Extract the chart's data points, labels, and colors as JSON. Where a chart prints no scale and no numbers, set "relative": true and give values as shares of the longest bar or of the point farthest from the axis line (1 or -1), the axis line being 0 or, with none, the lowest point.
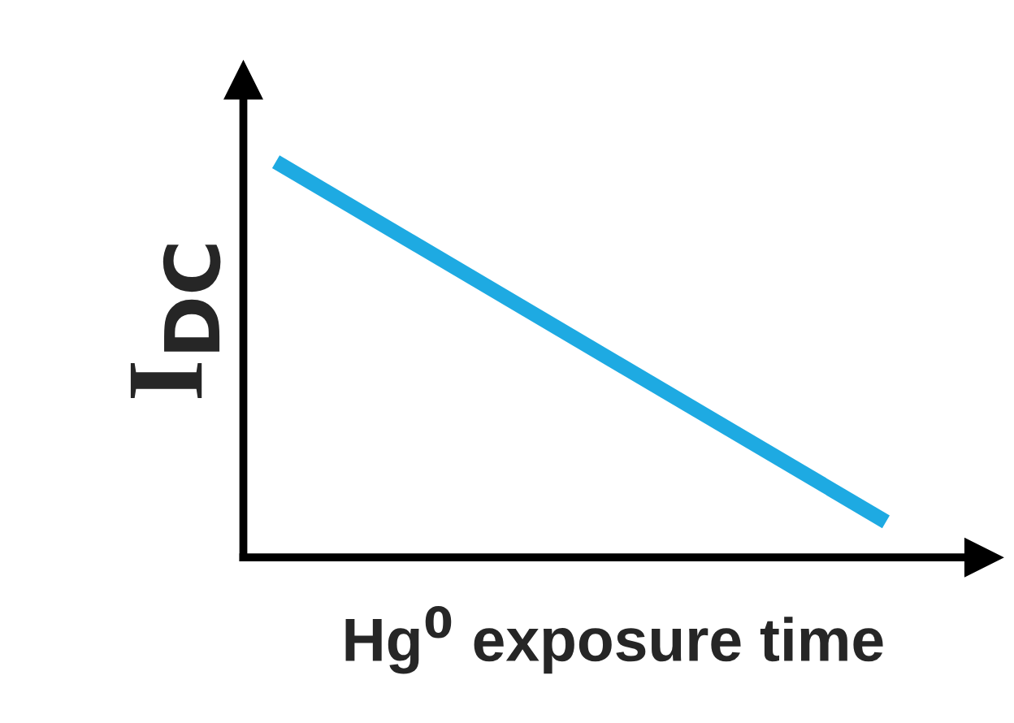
{
  "chart_data": {
    "type": "line",
    "relative": true,
    "categories": [
      null,
      null
    ],
    "series": [
      {
        "color": "#1eaae2",
        "values": [
          1,
          0.09
        ]
      }
    ],
    "xlabel": "Hg$^{0}$ exposure time",
    "ylabel": "I$_{DC}$",
    "grid": false,
    "marker": "none",
    "line_style": "solid"
  }
}
